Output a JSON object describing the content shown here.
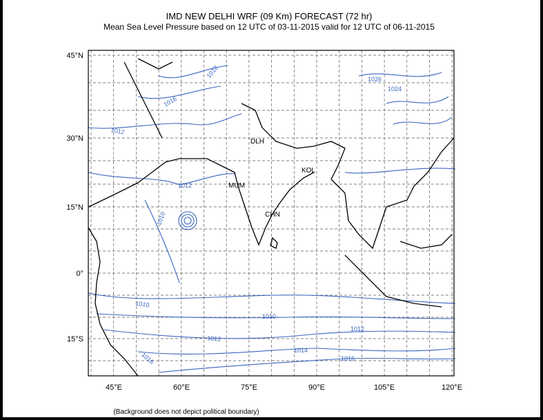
{
  "header": {
    "title": "IMD NEW DELHI  WRF (09 Km)  FORECAST  (72 hr)",
    "subtitle": "Mean Sea Level Pressure based on 12 UTC of 03-11-2015 valid for 12 UTC of 06-11-2015"
  },
  "map": {
    "lat_labels": [
      "45°N",
      "30°N",
      "15°N",
      "0°",
      "15°S"
    ],
    "lon_labels": [
      "45°E",
      "60°E",
      "75°E",
      "90°E",
      "105°E",
      "120°E"
    ],
    "cities": [
      "DLH",
      "MUM",
      "KOL",
      "CHN"
    ],
    "contour_labels": [
      1012,
      1010,
      1010,
      1010,
      1012,
      1012,
      1014,
      1016,
      1016,
      1026,
      1024,
      1018,
      1016,
      1012
    ]
  },
  "footnote": "(Background does not depict political boundary)"
}
